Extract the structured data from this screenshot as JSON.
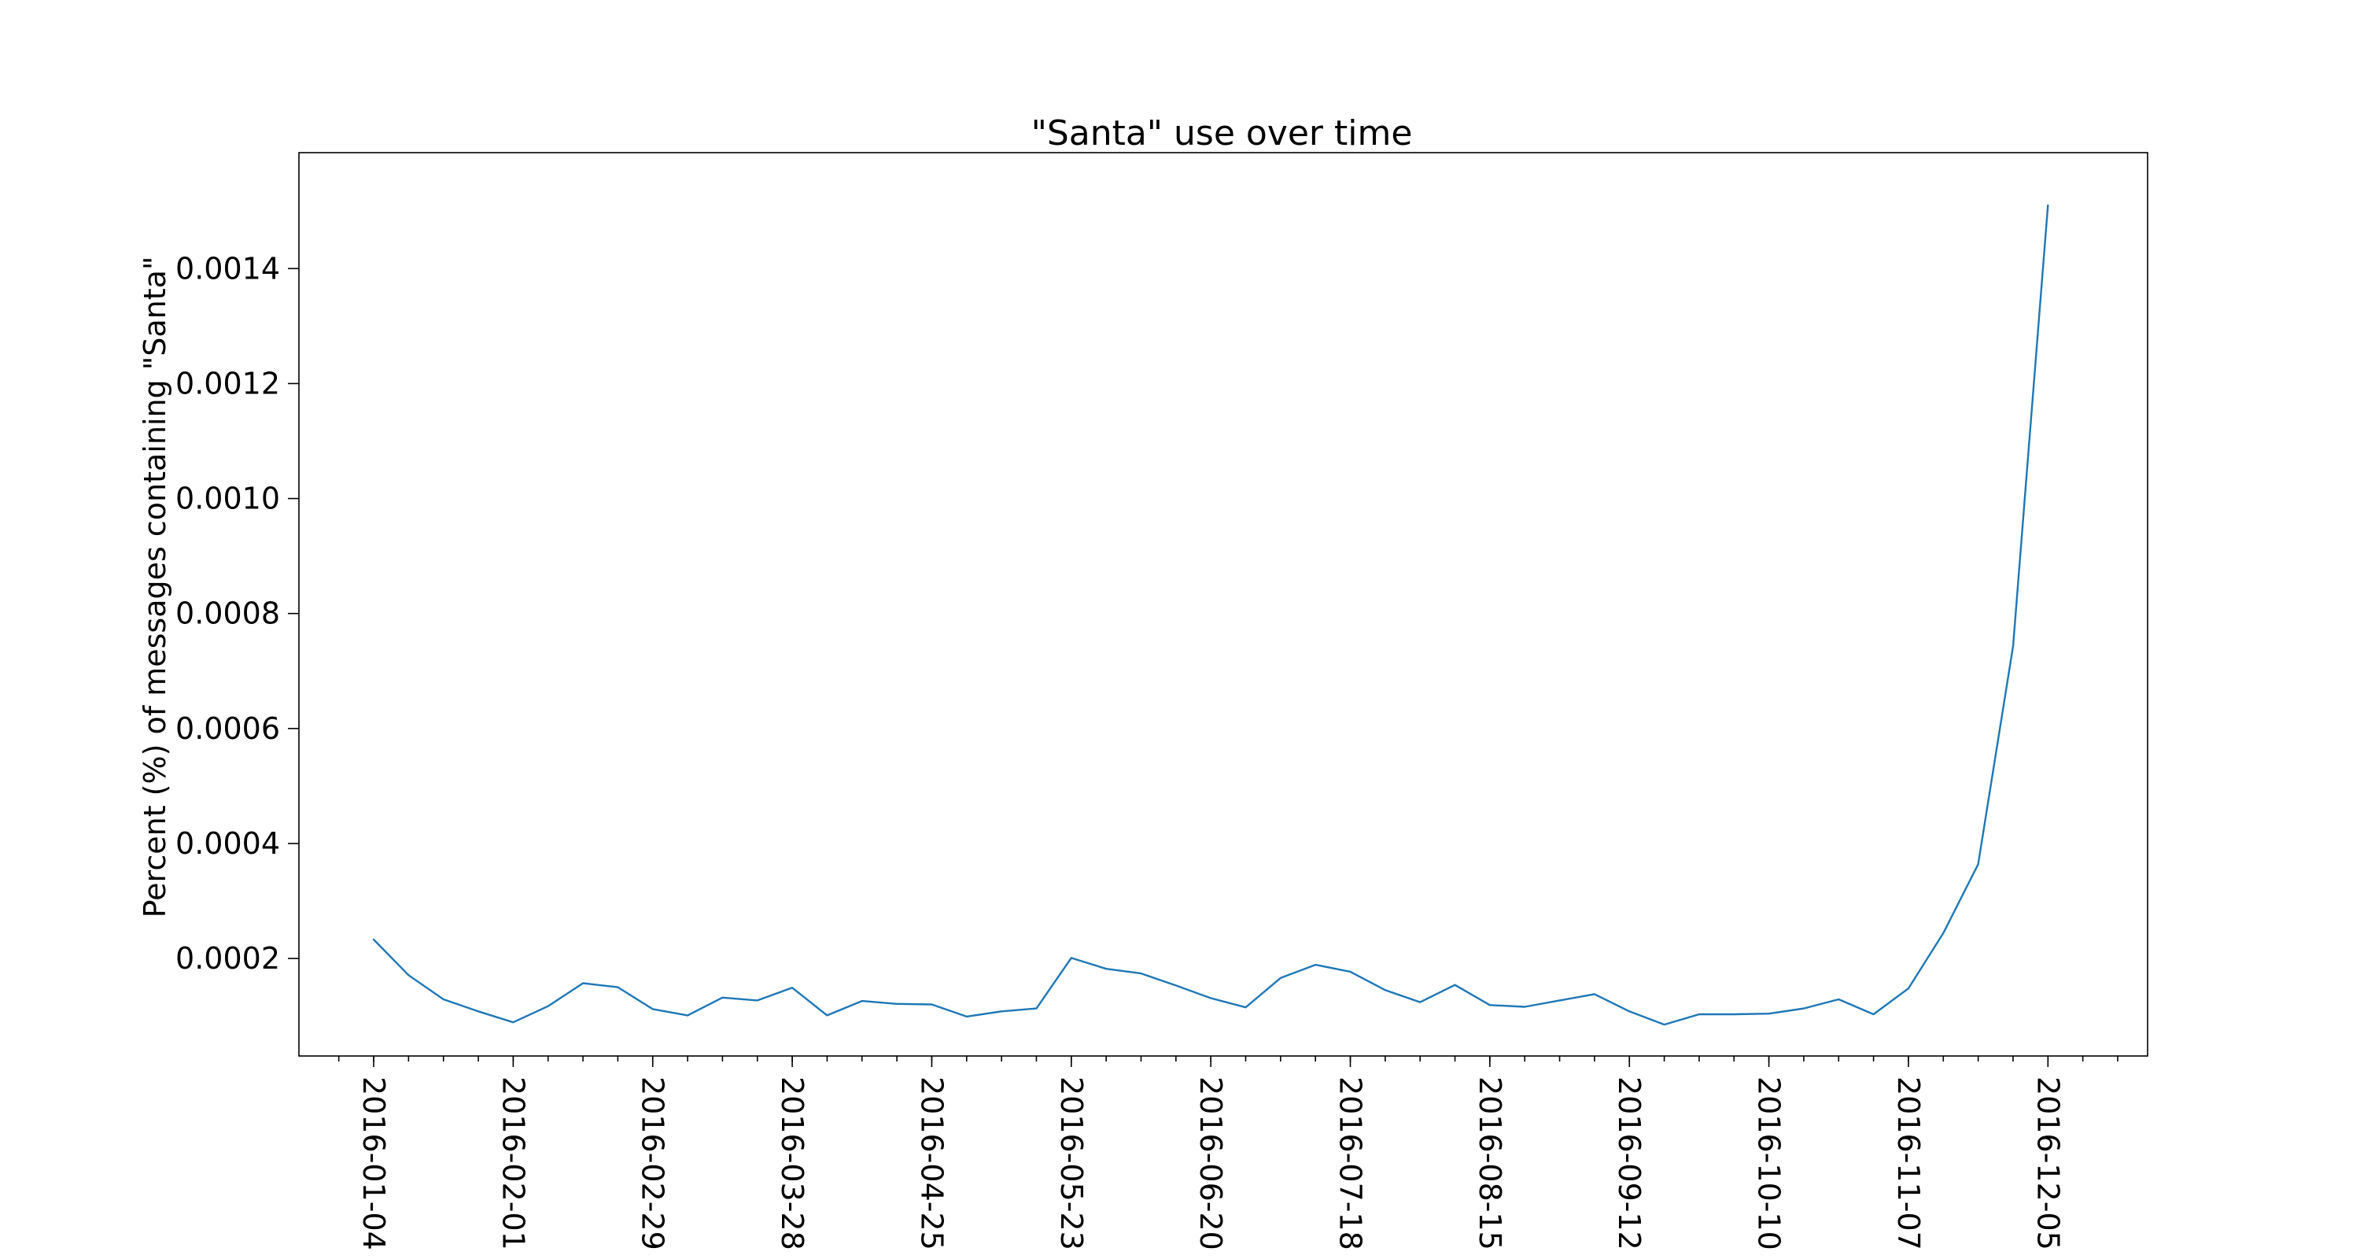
{
  "chart_data": {
    "type": "line",
    "title": "\"Santa\" use over time",
    "xlabel": "",
    "ylabel": "Percent (%) of messages containing \"Santa\"",
    "x_ticks": [
      "2016-01-04",
      "2016-02-01",
      "2016-02-29",
      "2016-03-28",
      "2016-04-25",
      "2016-05-23",
      "2016-06-20",
      "2016-07-18",
      "2016-08-15",
      "2016-09-12",
      "2016-10-10",
      "2016-11-07",
      "2016-12-05"
    ],
    "y_ticks": [
      "0.0002",
      "0.0004",
      "0.0006",
      "0.0008",
      "0.0010",
      "0.0012",
      "0.0014"
    ],
    "ylim": [
      3.04e-05,
      0.0016016
    ],
    "xlim": [
      "2015-12-20",
      "2016-12-25"
    ],
    "grid": false,
    "colors": {
      "line": "#1f77b4",
      "frame": "#000000"
    },
    "series": [
      {
        "x": [
          "2016-01-04",
          "2016-01-11",
          "2016-01-18",
          "2016-01-25",
          "2016-02-01",
          "2016-02-08",
          "2016-02-15",
          "2016-02-22",
          "2016-02-29",
          "2016-03-07",
          "2016-03-14",
          "2016-03-21",
          "2016-03-28",
          "2016-04-04",
          "2016-04-11",
          "2016-04-18",
          "2016-04-25",
          "2016-05-02",
          "2016-05-09",
          "2016-05-16",
          "2016-05-23",
          "2016-05-30",
          "2016-06-06",
          "2016-06-13",
          "2016-06-20",
          "2016-06-27",
          "2016-07-04",
          "2016-07-11",
          "2016-07-18",
          "2016-07-25",
          "2016-08-01",
          "2016-08-08",
          "2016-08-15",
          "2016-08-22",
          "2016-08-29",
          "2016-09-05",
          "2016-09-12",
          "2016-09-19",
          "2016-09-26",
          "2016-10-03",
          "2016-10-10",
          "2016-10-17",
          "2016-10-24",
          "2016-10-31",
          "2016-11-07",
          "2016-11-14",
          "2016-11-21",
          "2016-11-28",
          "2016-12-05"
        ],
        "values": [
          0.000233,
          0.000171,
          0.000129,
          0.000108,
          8.9e-05,
          0.000117,
          0.000157,
          0.00015,
          0.000112,
          0.000101,
          0.000132,
          0.000127,
          0.000149,
          0.000101,
          0.000126,
          0.000121,
          0.00012,
          9.9e-05,
          0.000108,
          0.000113,
          0.000201,
          0.000182,
          0.000174,
          0.000153,
          0.000131,
          0.000115,
          0.000166,
          0.000189,
          0.000177,
          0.000145,
          0.000124,
          0.000154,
          0.000119,
          0.000116,
          0.000127,
          0.000138,
          0.000108,
          8.5e-05,
          0.000103,
          0.000103,
          0.000104,
          0.000113,
          0.000129,
          0.000103,
          0.000148,
          0.000244,
          0.000364,
          0.000743,
          0.00151
        ]
      }
    ]
  }
}
